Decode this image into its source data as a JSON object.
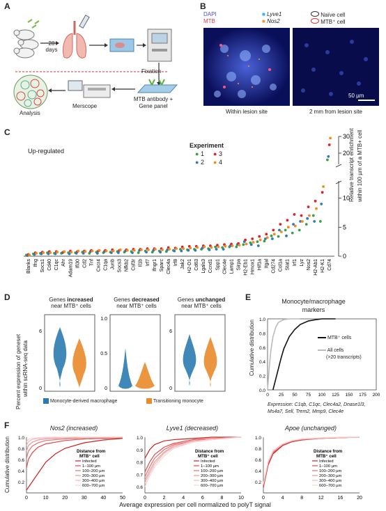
{
  "panels": {
    "A": {
      "label": "A",
      "days_text": "28\ndays",
      "fixation": "Fixation",
      "mtb_antibody": "MTB antibody +",
      "gene_panel": "Gene panel",
      "merscope": "Merscope",
      "analysis": "Analysis"
    },
    "B": {
      "label": "B",
      "dapi": "DAPI",
      "mtb": "MTB",
      "lyve1": "Lyve1",
      "nos2": "Nos2",
      "naive": "Naïve cell",
      "mtbcell": "MTB⁺ cell",
      "scale": "50 µm",
      "left_caption": "Within lesion site",
      "right_caption": "2 mm from lesion site"
    },
    "C": {
      "label": "C",
      "subtitle": "Up-regulated",
      "legend_title": "Experiment",
      "ylabel1": "Relative transcript enrichment",
      "ylabel2": "within 100 µm of a MTB+ cell",
      "blanks": "Blanks"
    },
    "D": {
      "label": "D",
      "ylabel1": "Percent expression of geneset",
      "ylabel2": "within scRNA-seq data",
      "t1a": "Genes ",
      "t1b": "increased",
      "t1c": "near MTB⁺ cells",
      "t2a": "Genes ",
      "t2b": "decreased",
      "t2c": "near MTB⁺ cells",
      "t3a": "Genes ",
      "t3b": "unchanged",
      "t3c": "near MTB⁺ cells",
      "leg1": "Monocyte-derived macrophage",
      "leg2": "Transitioning monocyte"
    },
    "E": {
      "label": "E",
      "title1": "Monocyte/macrophage",
      "title2": "markers",
      "ylabel": "Cumulative distribution",
      "leg1": "MTB⁺ cells",
      "leg2a": "All cells",
      "leg2b": "(>20 transcripts)",
      "xl1": "Expression: C1qb, C1qc, Clec4a2, Dnase1l3,",
      "xl2": "Ms4a7, Sell, Trem2, Mmp9, Clec4e"
    },
    "F": {
      "label": "F",
      "t1": "Nos2 (increased)",
      "t2": "Lyve1 (decreased)",
      "t3": "Apoe (unchanged)",
      "ylabel": "Cumulative distribution",
      "xlabel": "Average expression per cell normalized to polyT signal",
      "legend_title1": "Distance from",
      "legend_title2": "MTB⁺ cell",
      "legend_items": [
        "Infected",
        "1–100 µm",
        "100–200 µm",
        "200–300 µm",
        "300–400 µm",
        "600–700 µm"
      ]
    }
  },
  "colors": {
    "exp1": "#3aa048",
    "exp2": "#2f7cb5",
    "exp3": "#d6262b",
    "exp4": "#f08b1e",
    "macrophage": "#2a7bb0",
    "monocyte": "#e98a2b",
    "lyve1": "#35b5f0",
    "nos2": "#f39a2a"
  },
  "chart_data": [
    {
      "type": "scatter",
      "id": "C",
      "subtitle": "Up-regulated",
      "legend": [
        "1",
        "2",
        "3",
        "4"
      ],
      "categories": [
        "Blanks",
        "Ifng",
        "Socs1",
        "Cd40",
        "C1qc",
        "Ahr",
        "Adam19",
        "Ifi30",
        "Cd2",
        "Tnf",
        "Cxcr4",
        "C1qa",
        "Junb",
        "Socs3",
        "Nfkb2",
        "Csf3r",
        "Il1b",
        "Irf7",
        "Ifngr1",
        "Sparc",
        "Clec4a",
        "Irf8",
        "Jak2",
        "H2-D1",
        "Cd63",
        "Lgals3",
        "Ccnd1",
        "Spp1",
        "Clec4e",
        "Lamp1",
        "Sirpa",
        "H2-Eb1",
        "Hmox1",
        "Hif1a",
        "Itgal",
        "Cd274",
        "Col1a",
        "Stat1",
        "Irf1",
        "Lyz",
        "Nos2",
        "H2-Ab1",
        "H2-K1",
        "Cd74"
      ],
      "ylim": [
        0,
        30
      ],
      "yticks": [
        0,
        5,
        10,
        20,
        30
      ],
      "series": [
        {
          "values": [
            0.2,
            0.4,
            0.5,
            0.6,
            0.5,
            0.5,
            0.6,
            0.6,
            0.7,
            0.5,
            0.7,
            0.6,
            0.7,
            0.8,
            0.7,
            0.8,
            0.6,
            0.9,
            0.7,
            0.9,
            0.8,
            1.0,
            1.2,
            1.1,
            1.2,
            1.2,
            1.3,
            1.6,
            1.5,
            1.6,
            1.6,
            2.0,
            2.3,
            2.5,
            2.6,
            3.5,
            3.4,
            4.5,
            4.0,
            4.5,
            5.5,
            7.0,
            6.0,
            16.0
          ]
        },
        {
          "values": [
            0.1,
            0.3,
            0.4,
            0.4,
            0.4,
            0.6,
            0.4,
            0.5,
            0.5,
            0.8,
            0.5,
            0.8,
            0.6,
            0.6,
            0.9,
            0.6,
            1.0,
            0.7,
            1.0,
            0.7,
            1.1,
            0.9,
            0.9,
            1.0,
            1.0,
            1.4,
            1.1,
            1.2,
            1.2,
            1.8,
            2.0,
            2.5,
            2.0,
            1.8,
            3.0,
            3.0,
            4.5,
            3.5,
            5.5,
            6.0,
            6.5,
            6.0,
            9.0,
            18.0
          ]
        },
        {
          "values": [
            0.3,
            0.6,
            0.7,
            0.8,
            0.8,
            0.7,
            0.9,
            0.8,
            0.9,
            1.0,
            0.9,
            1.0,
            1.1,
            1.0,
            1.1,
            1.2,
            1.2,
            1.3,
            1.3,
            1.3,
            1.5,
            1.4,
            1.6,
            1.7,
            1.7,
            1.8,
            1.8,
            1.9,
            2.0,
            2.1,
            2.2,
            2.8,
            3.0,
            3.4,
            3.8,
            4.5,
            5.5,
            6.2,
            7.2,
            7.0,
            8.5,
            9.5,
            11.0,
            25.0
          ]
        },
        {
          "values": [
            0.2,
            0.5,
            0.6,
            0.6,
            0.7,
            0.8,
            0.7,
            0.9,
            0.8,
            0.9,
            1.0,
            0.9,
            0.9,
            1.1,
            1.0,
            1.0,
            1.1,
            1.1,
            1.2,
            1.1,
            1.2,
            1.3,
            1.3,
            1.4,
            1.5,
            1.6,
            1.5,
            1.6,
            1.7,
            1.8,
            1.9,
            2.1,
            2.4,
            2.8,
            3.2,
            3.8,
            4.2,
            5.0,
            5.2,
            6.0,
            7.0,
            8.2,
            12.0,
            29.0
          ]
        }
      ]
    },
    {
      "type": "line",
      "id": "E",
      "xlim": [
        0,
        200
      ],
      "ylim": [
        0,
        1.0
      ],
      "xticks": [
        0,
        25,
        50,
        75,
        100,
        125,
        150,
        175,
        200
      ],
      "yticks": [
        0,
        0.2,
        0.4,
        0.6,
        0.8,
        1.0
      ],
      "series": [
        {
          "name": "MTB⁺ cells",
          "x": [
            10,
            15,
            20,
            25,
            30,
            40,
            50,
            60,
            75,
            90,
            100,
            125
          ],
          "y": [
            0,
            0.15,
            0.3,
            0.45,
            0.58,
            0.75,
            0.85,
            0.92,
            0.97,
            0.99,
            1.0,
            1.0
          ]
        },
        {
          "name": "All cells (>20 transcripts)",
          "x": [
            0,
            3,
            6,
            10,
            15,
            20,
            30,
            40,
            60
          ],
          "y": [
            0,
            0.3,
            0.55,
            0.75,
            0.88,
            0.95,
            0.99,
            1.0,
            1.0
          ]
        }
      ]
    },
    {
      "type": "line",
      "id": "F1",
      "title": "Nos2 (increased)",
      "xlim": [
        0,
        50
      ],
      "ylim": [
        0,
        1.0
      ],
      "xticks": [
        0,
        10,
        20,
        30,
        40,
        50
      ],
      "yticks": [
        0.2,
        0.4,
        0.6,
        0.8,
        1.0
      ],
      "series": [
        {
          "name": "Infected",
          "x": [
            0,
            2,
            5,
            10,
            15,
            20,
            30,
            40,
            50
          ],
          "y": [
            0.05,
            0.15,
            0.3,
            0.55,
            0.7,
            0.8,
            0.9,
            0.95,
            0.98
          ]
        },
        {
          "name": "1–100 µm",
          "x": [
            0,
            1,
            3,
            6,
            10,
            20,
            30,
            50
          ],
          "y": [
            0.45,
            0.6,
            0.72,
            0.82,
            0.88,
            0.94,
            0.97,
            0.99
          ]
        },
        {
          "name": "100–200 µm",
          "x": [
            0,
            1,
            3,
            6,
            10,
            20,
            30,
            50
          ],
          "y": [
            0.62,
            0.75,
            0.84,
            0.9,
            0.94,
            0.97,
            0.99,
            1.0
          ]
        },
        {
          "name": "200–300 µm",
          "x": [
            0,
            1,
            3,
            6,
            10,
            20,
            50
          ],
          "y": [
            0.75,
            0.85,
            0.91,
            0.95,
            0.97,
            0.99,
            1.0
          ]
        },
        {
          "name": "300–400 µm",
          "x": [
            0,
            1,
            3,
            6,
            10,
            20,
            50
          ],
          "y": [
            0.85,
            0.92,
            0.96,
            0.98,
            0.99,
            1.0,
            1.0
          ]
        },
        {
          "name": "600–700 µm",
          "x": [
            0,
            1,
            3,
            6,
            10,
            50
          ],
          "y": [
            0.92,
            0.96,
            0.98,
            0.99,
            1.0,
            1.0
          ]
        }
      ]
    },
    {
      "type": "line",
      "id": "F2",
      "title": "Lyve1 (decreased)",
      "xlim": [
        0,
        10
      ],
      "ylim": [
        0.55,
        1.0
      ],
      "xticks": [
        0,
        2,
        4,
        6,
        8,
        10
      ],
      "yticks": [
        0.6,
        0.7,
        0.8,
        0.9,
        1.0
      ],
      "series": [
        {
          "name": "Infected",
          "x": [
            0,
            0.5,
            1,
            2,
            3,
            5,
            7,
            10
          ],
          "y": [
            0.83,
            0.9,
            0.94,
            0.97,
            0.98,
            0.99,
            1.0,
            1.0
          ]
        },
        {
          "name": "1–100 µm",
          "x": [
            0,
            0.5,
            1,
            2,
            3,
            5,
            7,
            10
          ],
          "y": [
            0.72,
            0.8,
            0.86,
            0.92,
            0.95,
            0.98,
            0.99,
            1.0
          ]
        },
        {
          "name": "100–200 µm",
          "x": [
            0,
            0.5,
            1,
            2,
            3,
            5,
            7,
            10
          ],
          "y": [
            0.68,
            0.76,
            0.83,
            0.9,
            0.94,
            0.97,
            0.99,
            1.0
          ]
        },
        {
          "name": "200–300 µm",
          "x": [
            0,
            0.5,
            1,
            2,
            3,
            5,
            7,
            10
          ],
          "y": [
            0.65,
            0.73,
            0.8,
            0.88,
            0.93,
            0.97,
            0.99,
            1.0
          ]
        },
        {
          "name": "300–400 µm",
          "x": [
            0,
            0.5,
            1,
            2,
            3,
            5,
            7,
            10
          ],
          "y": [
            0.63,
            0.71,
            0.78,
            0.87,
            0.92,
            0.96,
            0.98,
            1.0
          ]
        },
        {
          "name": "600–700 µm",
          "x": [
            0,
            0.5,
            1,
            2,
            3,
            5,
            7,
            10
          ],
          "y": [
            0.6,
            0.69,
            0.76,
            0.85,
            0.91,
            0.96,
            0.98,
            1.0
          ]
        }
      ]
    },
    {
      "type": "line",
      "id": "F3",
      "title": "Apoe (unchanged)",
      "xlim": [
        0,
        20
      ],
      "ylim": [
        0,
        1.0
      ],
      "xticks": [
        0,
        4,
        8,
        12,
        16,
        20
      ],
      "yticks": [
        0.2,
        0.4,
        0.6,
        0.8,
        1.0
      ],
      "series": [
        {
          "name": "Infected",
          "x": [
            0,
            0.5,
            1,
            2,
            4,
            6,
            8,
            12,
            16,
            20
          ],
          "y": [
            0.1,
            0.3,
            0.5,
            0.7,
            0.85,
            0.92,
            0.95,
            0.98,
            0.99,
            1.0
          ]
        },
        {
          "name": "1–100 µm",
          "x": [
            0,
            0.5,
            1,
            2,
            4,
            6,
            8,
            12,
            16,
            20
          ],
          "y": [
            0.12,
            0.32,
            0.52,
            0.72,
            0.86,
            0.93,
            0.96,
            0.98,
            0.99,
            1.0
          ]
        },
        {
          "name": "100–200 µm",
          "x": [
            0,
            0.5,
            1,
            2,
            4,
            6,
            8,
            12,
            16,
            20
          ],
          "y": [
            0.14,
            0.34,
            0.54,
            0.73,
            0.87,
            0.93,
            0.96,
            0.98,
            0.99,
            1.0
          ]
        },
        {
          "name": "200–300 µm",
          "x": [
            0,
            0.5,
            1,
            2,
            4,
            6,
            8,
            12,
            16,
            20
          ],
          "y": [
            0.15,
            0.35,
            0.55,
            0.74,
            0.87,
            0.94,
            0.96,
            0.98,
            0.99,
            1.0
          ]
        },
        {
          "name": "300–400 µm",
          "x": [
            0,
            0.5,
            1,
            2,
            4,
            6,
            8,
            12,
            16,
            20
          ],
          "y": [
            0.16,
            0.36,
            0.56,
            0.75,
            0.88,
            0.94,
            0.97,
            0.99,
            1.0,
            1.0
          ]
        },
        {
          "name": "600–700 µm",
          "x": [
            0,
            0.5,
            1,
            2,
            4,
            6,
            8,
            12,
            16,
            20
          ],
          "y": [
            0.17,
            0.37,
            0.57,
            0.76,
            0.88,
            0.94,
            0.97,
            0.99,
            1.0,
            1.0
          ]
        }
      ]
    }
  ]
}
